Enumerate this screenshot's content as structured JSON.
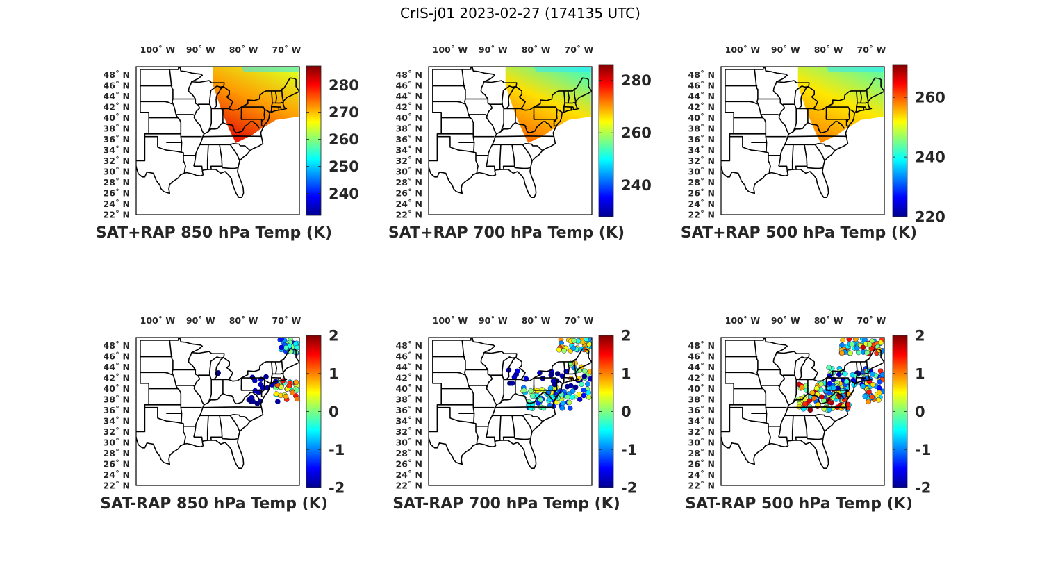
{
  "figure": {
    "title": "CrIS-j01 2023-02-27 (174135 UTC)"
  },
  "colormap": "jet",
  "lon_ticks": [
    "100˚ W",
    "90˚ W",
    "80˚ W",
    "70˚ W"
  ],
  "lat_ticks": [
    "48˚ N",
    "46˚ N",
    "44˚ N",
    "42˚ N",
    "40˚ N",
    "38˚ N",
    "36˚ N",
    "34˚ N",
    "32˚ N",
    "30˚ N",
    "28˚ N",
    "26˚ N",
    "24˚ N",
    "22˚ N"
  ],
  "panels": [
    {
      "name": "sat-rap-850",
      "title": "SAT+RAP 850 hPa Temp (K)",
      "colorbar": {
        "range": [
          232,
          287
        ],
        "ticks": [
          "240",
          "250",
          "260",
          "270",
          "280"
        ]
      },
      "field": "swath",
      "swath_colors": [
        "#dfff20",
        "#ff9a00",
        "#e61400"
      ]
    },
    {
      "name": "sat-rap-700",
      "title": "SAT+RAP 700 hPa Temp (K)",
      "colorbar": {
        "range": [
          228,
          286
        ],
        "ticks": [
          "240",
          "260",
          "280"
        ]
      },
      "field": "swath",
      "swath_colors": [
        "#40ffc0",
        "#ffe000",
        "#ff7000"
      ]
    },
    {
      "name": "sat-rap-500",
      "title": "SAT+RAP 500 hPa Temp (K)",
      "colorbar": {
        "range": [
          220,
          271
        ],
        "ticks": [
          "220",
          "240",
          "260"
        ]
      },
      "field": "swath",
      "swath_colors": [
        "#60ffa0",
        "#ffe800",
        "#ff8800"
      ]
    },
    {
      "name": "sat-minus-rap-850",
      "title": "SAT-RAP 850 hPa Temp (K)",
      "colorbar": {
        "range": [
          -2,
          2
        ],
        "ticks": [
          "-2",
          "-1",
          "0",
          "1",
          "2"
        ]
      },
      "field": "diff"
    },
    {
      "name": "sat-minus-rap-700",
      "title": "SAT-RAP 700 hPa Temp (K)",
      "colorbar": {
        "range": [
          -2,
          2
        ],
        "ticks": [
          "-2",
          "-1",
          "0",
          "1",
          "2"
        ]
      },
      "field": "diff"
    },
    {
      "name": "sat-minus-rap-500",
      "title": "SAT-RAP 500 hPa Temp (K)",
      "colorbar": {
        "range": [
          -2,
          2
        ],
        "ticks": [
          "-2",
          "-1",
          "0",
          "1",
          "2"
        ]
      },
      "field": "diff"
    }
  ]
}
